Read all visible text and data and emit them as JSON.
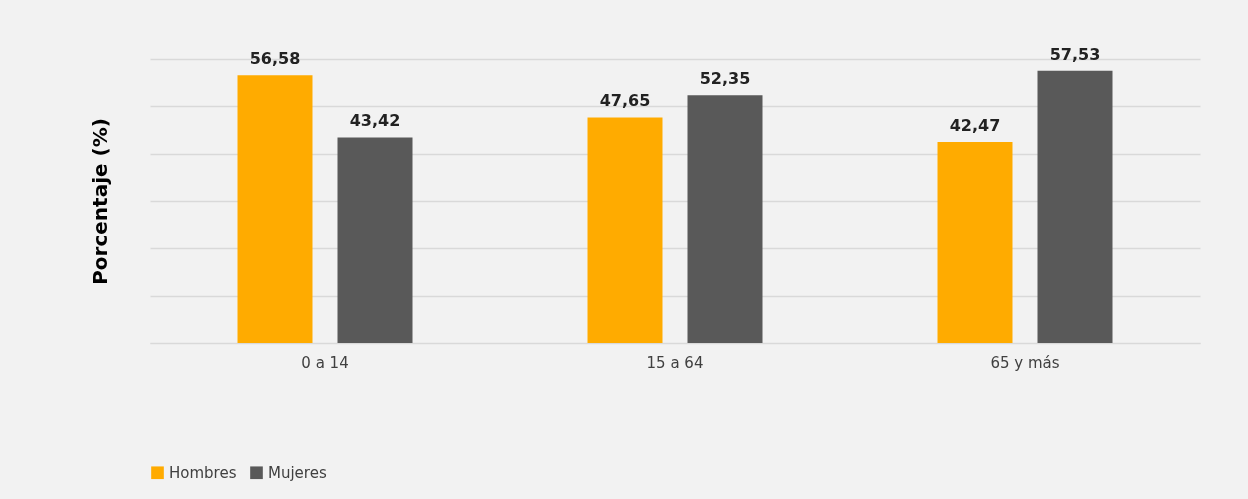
{
  "chart_data": {
    "type": "bar",
    "ylabel": "Porcentaje (%)",
    "categories": [
      "0 a 14",
      "15 a 64",
      "65 y más"
    ],
    "series": [
      {
        "name": "Hombres",
        "color": "#ffab00",
        "values": [
          56.58,
          47.65,
          42.47
        ],
        "value_labels": [
          "56,58",
          "47,65",
          "42,47"
        ]
      },
      {
        "name": "Mujeres",
        "color": "#595959",
        "values": [
          43.42,
          52.35,
          57.53
        ],
        "value_labels": [
          "43,42",
          "52,35",
          "57,53"
        ]
      }
    ],
    "tick_labels": "x",
    "grid": "y",
    "legend": "bottom"
  }
}
